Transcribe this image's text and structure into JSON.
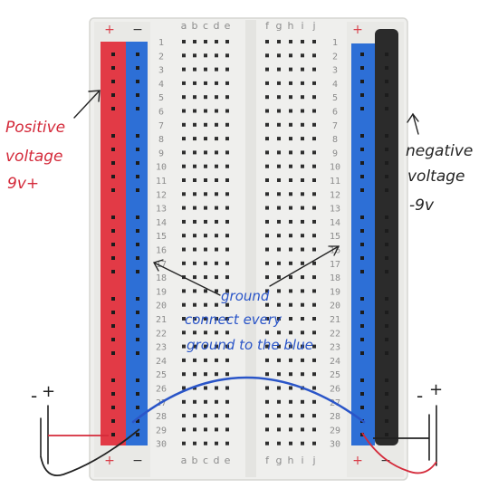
{
  "colors": {
    "board": "#efefed",
    "board_edge": "#d6d6d2",
    "positive_rail": "#e23a46",
    "ground_rail": "#2d6fd6",
    "negative_rail": "#2b2b2b",
    "hole": "#2e2e2e",
    "label_grey": "#8c8c8c",
    "annotation_red": "#d42a3a",
    "annotation_blue": "#2a55c8",
    "annotation_black": "#222222",
    "sign_red": "#d9404a"
  },
  "breadboard": {
    "columns_left": [
      "a",
      "b",
      "c",
      "d",
      "e"
    ],
    "columns_right": [
      "f",
      "g",
      "h",
      "i",
      "j"
    ],
    "row_count": 30,
    "rail_sign_plus": "+",
    "rail_sign_minus": "−"
  },
  "annotations": {
    "positive": {
      "line1": "Positive",
      "line2": "voltage",
      "line3": "9v+"
    },
    "negative": {
      "line1": "negative",
      "line2": "voltage",
      "line3": "-9v"
    },
    "ground": {
      "line1": "ground",
      "line2": "connect every",
      "line3": "ground to the blue"
    },
    "left_battery": {
      "minus": "-",
      "plus": "+"
    },
    "right_battery": {
      "minus": "-",
      "plus": "+"
    }
  }
}
